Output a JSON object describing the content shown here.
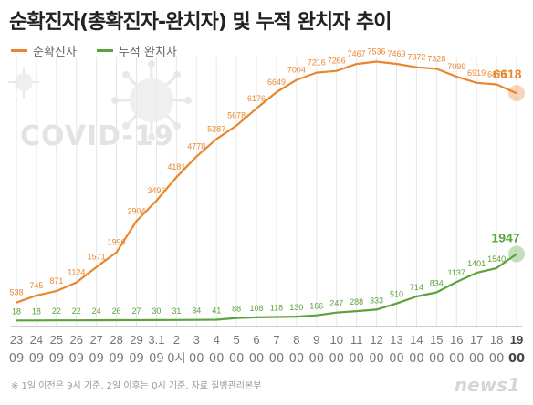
{
  "title": "순확진자(총확진자-완치자) 및 누적 완치자 추이",
  "watermark": "COVID-19",
  "footnote": "※ 1일 이전은 9시 기준, 2일 이후는 0시 기준. 자료 질병관리본부",
  "logo": "news1",
  "colors": {
    "active": "#e8872e",
    "recovered": "#5ba33b",
    "grid": "#e6e6e6",
    "axis": "#bdbdbd"
  },
  "chart_data": {
    "type": "line",
    "x_top": [
      "23",
      "24",
      "25",
      "26",
      "27",
      "28",
      "29",
      "3.1",
      "2",
      "3",
      "4",
      "5",
      "6",
      "7",
      "8",
      "9",
      "10",
      "11",
      "12",
      "13",
      "14",
      "15",
      "16",
      "17",
      "18",
      "19"
    ],
    "x_bottom": [
      "09",
      "09",
      "09",
      "09",
      "09",
      "09",
      "09",
      "09",
      "0시",
      "00",
      "00",
      "00",
      "00",
      "00",
      "00",
      "00",
      "00",
      "00",
      "00",
      "00",
      "00",
      "00",
      "00",
      "00",
      "00",
      "00"
    ],
    "series": [
      {
        "name": "순확진자",
        "color": "#e8872e",
        "values": [
          538,
          745,
          871,
          1124,
          1571,
          1996,
          2904,
          3496,
          4181,
          4778,
          5287,
          5678,
          6176,
          6649,
          7004,
          7216,
          7266,
          7467,
          7536,
          7469,
          7372,
          7328,
          7099,
          6919,
          6873,
          6618
        ]
      },
      {
        "name": "누적 완치자",
        "color": "#5ba33b",
        "values": [
          18,
          18,
          22,
          22,
          24,
          26,
          27,
          30,
          31,
          34,
          41,
          88,
          108,
          118,
          130,
          166,
          247,
          288,
          333,
          510,
          714,
          834,
          1137,
          1401,
          1540,
          1947
        ]
      }
    ],
    "ylim": [
      0,
      8000
    ],
    "grid": "vertical",
    "legend": "top-left"
  }
}
